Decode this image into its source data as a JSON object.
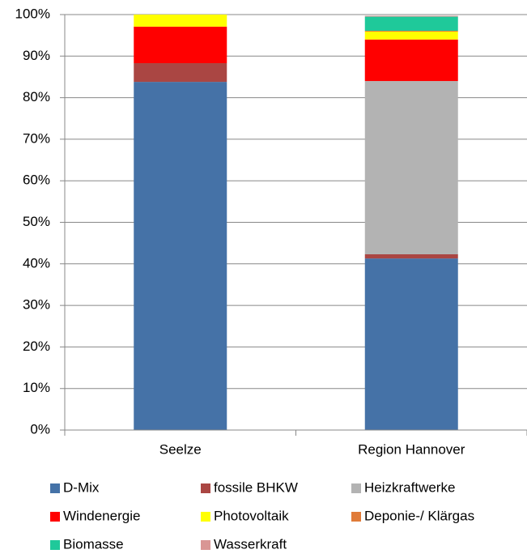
{
  "chart_data": {
    "type": "stacked_bar",
    "categories": [
      "Seelze",
      "Region Hannover"
    ],
    "series": [
      {
        "name": "D-Mix",
        "color": "#4572a7",
        "values": [
          83.8,
          41.3
        ]
      },
      {
        "name": "fossile BHKW",
        "color": "#aa4643",
        "values": [
          4.5,
          1.0
        ]
      },
      {
        "name": "Heizkraftwerke",
        "color": "#b3b3b3",
        "values": [
          0,
          41.7
        ]
      },
      {
        "name": "Windenergie",
        "color": "#ff0000",
        "values": [
          8.8,
          10.0
        ]
      },
      {
        "name": "Photovoltaik",
        "color": "#ffff00",
        "values": [
          2.9,
          1.9
        ]
      },
      {
        "name": "Deponie-/ Klärgas",
        "color": "#e07b39",
        "values": [
          0,
          0.2
        ]
      },
      {
        "name": "Biomasse",
        "color": "#1fc99a",
        "values": [
          0,
          3.4
        ]
      },
      {
        "name": "Wasserkraft",
        "color": "#d99694",
        "values": [
          0,
          0.2
        ]
      }
    ],
    "ylim": [
      0,
      100
    ],
    "yticks": [
      {
        "value": 0,
        "label": "0%"
      },
      {
        "value": 10,
        "label": "10%"
      },
      {
        "value": 20,
        "label": "20%"
      },
      {
        "value": 30,
        "label": "30%"
      },
      {
        "value": 40,
        "label": "40%"
      },
      {
        "value": 50,
        "label": "50%"
      },
      {
        "value": 60,
        "label": "60%"
      },
      {
        "value": 70,
        "label": "70%"
      },
      {
        "value": 80,
        "label": "80%"
      },
      {
        "value": 90,
        "label": "90%"
      },
      {
        "value": 100,
        "label": "100%"
      }
    ],
    "grid": true,
    "legend": "bottom"
  }
}
